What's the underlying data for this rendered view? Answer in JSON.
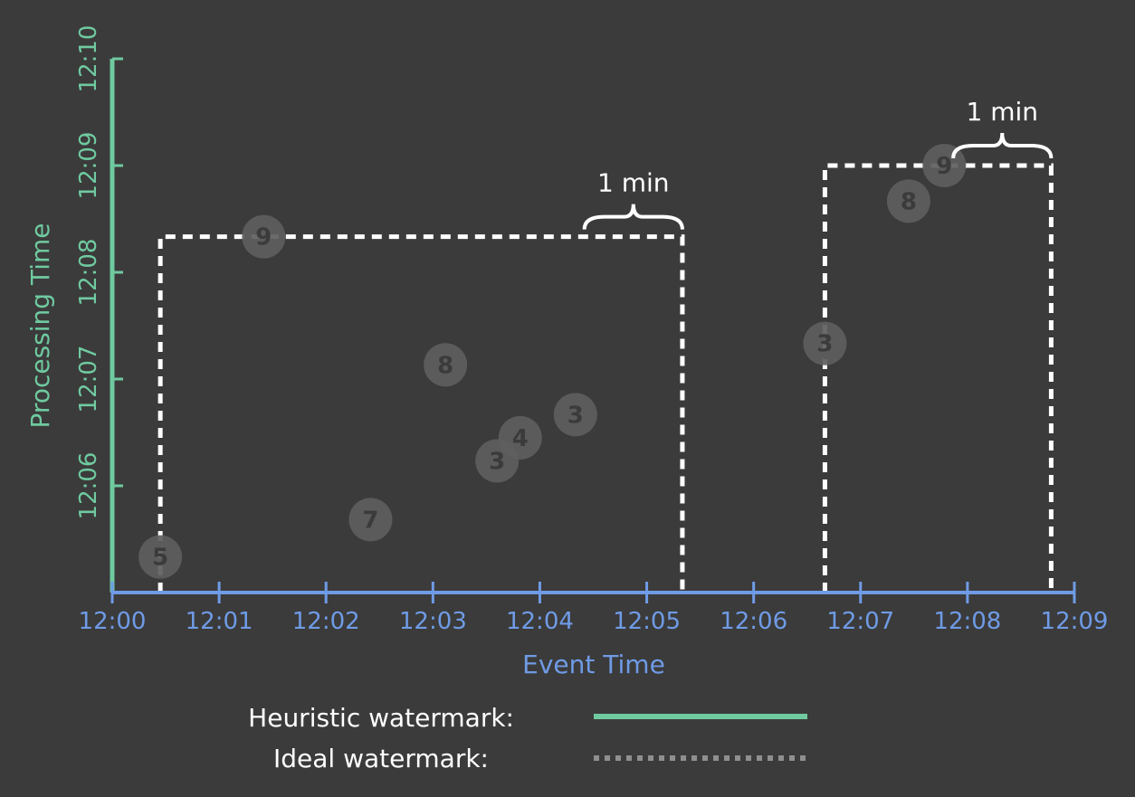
{
  "colors": {
    "background": "#3b3b3b",
    "x_axis": "#6f9be6",
    "y_axis": "#6fcaa0",
    "window": "#ffffff",
    "point": "#5e5e5e",
    "point_label": "#3b3b3b",
    "ideal_legend": "#8f8f8f"
  },
  "chart_data": {
    "type": "scatter",
    "xlabel": "Event Time",
    "ylabel": "Processing Time",
    "x_ticks": [
      "12:00",
      "12:01",
      "12:02",
      "12:03",
      "12:04",
      "12:05",
      "12:06",
      "12:07",
      "12:08",
      "12:09"
    ],
    "y_ticks": [
      "12:06",
      "12:07",
      "12:08",
      "12:09",
      "12:10"
    ],
    "xlim": [
      "12:00",
      "12:09"
    ],
    "ylim": [
      "12:05",
      "12:10"
    ],
    "points": [
      {
        "x": "12:00:27",
        "y": "12:05:20",
        "value": "5"
      },
      {
        "x": "12:01:25",
        "y": "12:08:20",
        "value": "9"
      },
      {
        "x": "12:02:25",
        "y": "12:05:41",
        "value": "7"
      },
      {
        "x": "12:03:07",
        "y": "12:07:08",
        "value": "8"
      },
      {
        "x": "12:03:36",
        "y": "12:06:14",
        "value": "3"
      },
      {
        "x": "12:03:49",
        "y": "12:06:27",
        "value": "4"
      },
      {
        "x": "12:04:20",
        "y": "12:06:40",
        "value": "3"
      },
      {
        "x": "12:06:40",
        "y": "12:07:20",
        "value": "3"
      },
      {
        "x": "12:07:27",
        "y": "12:08:40",
        "value": "8"
      },
      {
        "x": "12:07:47",
        "y": "12:09:00",
        "value": "9"
      }
    ],
    "windows": [
      {
        "start": "12:00:27",
        "end": "12:05:20",
        "watermark_y": "12:08:20",
        "annotation": "1 min"
      },
      {
        "start": "12:06:40",
        "end": "12:08:47",
        "watermark_y": "12:09:00",
        "annotation": "1 min"
      }
    ]
  },
  "legend": {
    "heuristic_label": "Heuristic watermark:",
    "ideal_label": "Ideal watermark:"
  }
}
